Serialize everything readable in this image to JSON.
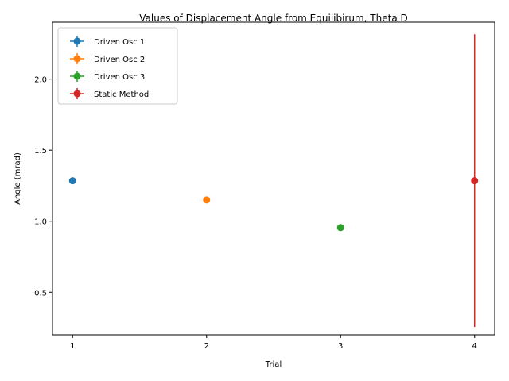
{
  "chart_data": {
    "type": "scatter",
    "title": "Values of Displacement Angle from Equilibirum, Theta D",
    "xlabel": "Trial",
    "ylabel": "Angle (mrad)",
    "xlim": [
      0.85,
      4.15
    ],
    "ylim": [
      0.2,
      2.4
    ],
    "xticks": [
      1,
      2,
      3,
      4
    ],
    "yticks": [
      0.5,
      1.0,
      1.5,
      2.0
    ],
    "ytick_labels": [
      "0.5",
      "1.0",
      "1.5",
      "2.0"
    ],
    "grid": false,
    "legend_position": "top-left",
    "series": [
      {
        "name": "Driven Osc 1",
        "color": "#1f77b4",
        "x": 1,
        "y": 1.285,
        "yerr": 0.005
      },
      {
        "name": "Driven Osc 2",
        "color": "#ff7f0e",
        "x": 2,
        "y": 1.15,
        "yerr": 0.005
      },
      {
        "name": "Driven Osc 3",
        "color": "#2ca02c",
        "x": 3,
        "y": 0.955,
        "yerr": 0.005
      },
      {
        "name": "Static Method",
        "color": "#d62728",
        "x": 4,
        "y": 1.285,
        "yerr": 1.03
      }
    ]
  }
}
